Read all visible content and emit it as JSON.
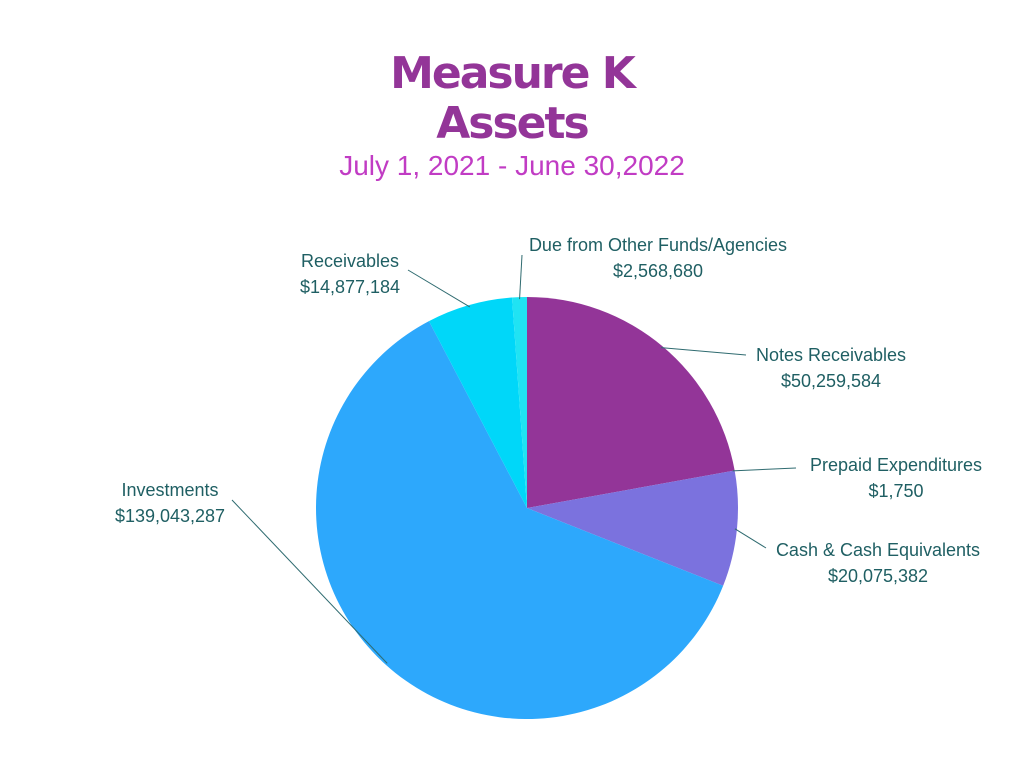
{
  "title_line1": "Measure K",
  "title_line2": "Assets",
  "subtitle": "July 1, 2021 - June 30,2022",
  "colors": {
    "title": "#933598",
    "subtitle": "#c13cc4",
    "label": "#1f5f63",
    "leader": "#2f6b70"
  },
  "chart_data": {
    "type": "pie",
    "title": "Measure K Assets",
    "subtitle": "July 1, 2021 - June 30,2022",
    "slices": [
      {
        "name": "Notes Receivables",
        "display": "$50,259,584",
        "value": 50259584,
        "color": "#933598"
      },
      {
        "name": "Prepaid Expenditures",
        "display": "$1,750",
        "value": 1750,
        "color": "#933598"
      },
      {
        "name": "Cash & Cash Equivalents",
        "display": "$20,075,382",
        "value": 20075382,
        "color": "#7b72de"
      },
      {
        "name": "Investments",
        "display": "$139,043,287",
        "value": 139043287,
        "color": "#2da8fc"
      },
      {
        "name": "Receivables",
        "display": "$14,877,184",
        "value": 14877184,
        "color": "#00d7f9"
      },
      {
        "name": "Due from Other Funds/Agencies",
        "display": "$2,568,680",
        "value": 2568680,
        "color": "#20e3f3"
      }
    ]
  }
}
